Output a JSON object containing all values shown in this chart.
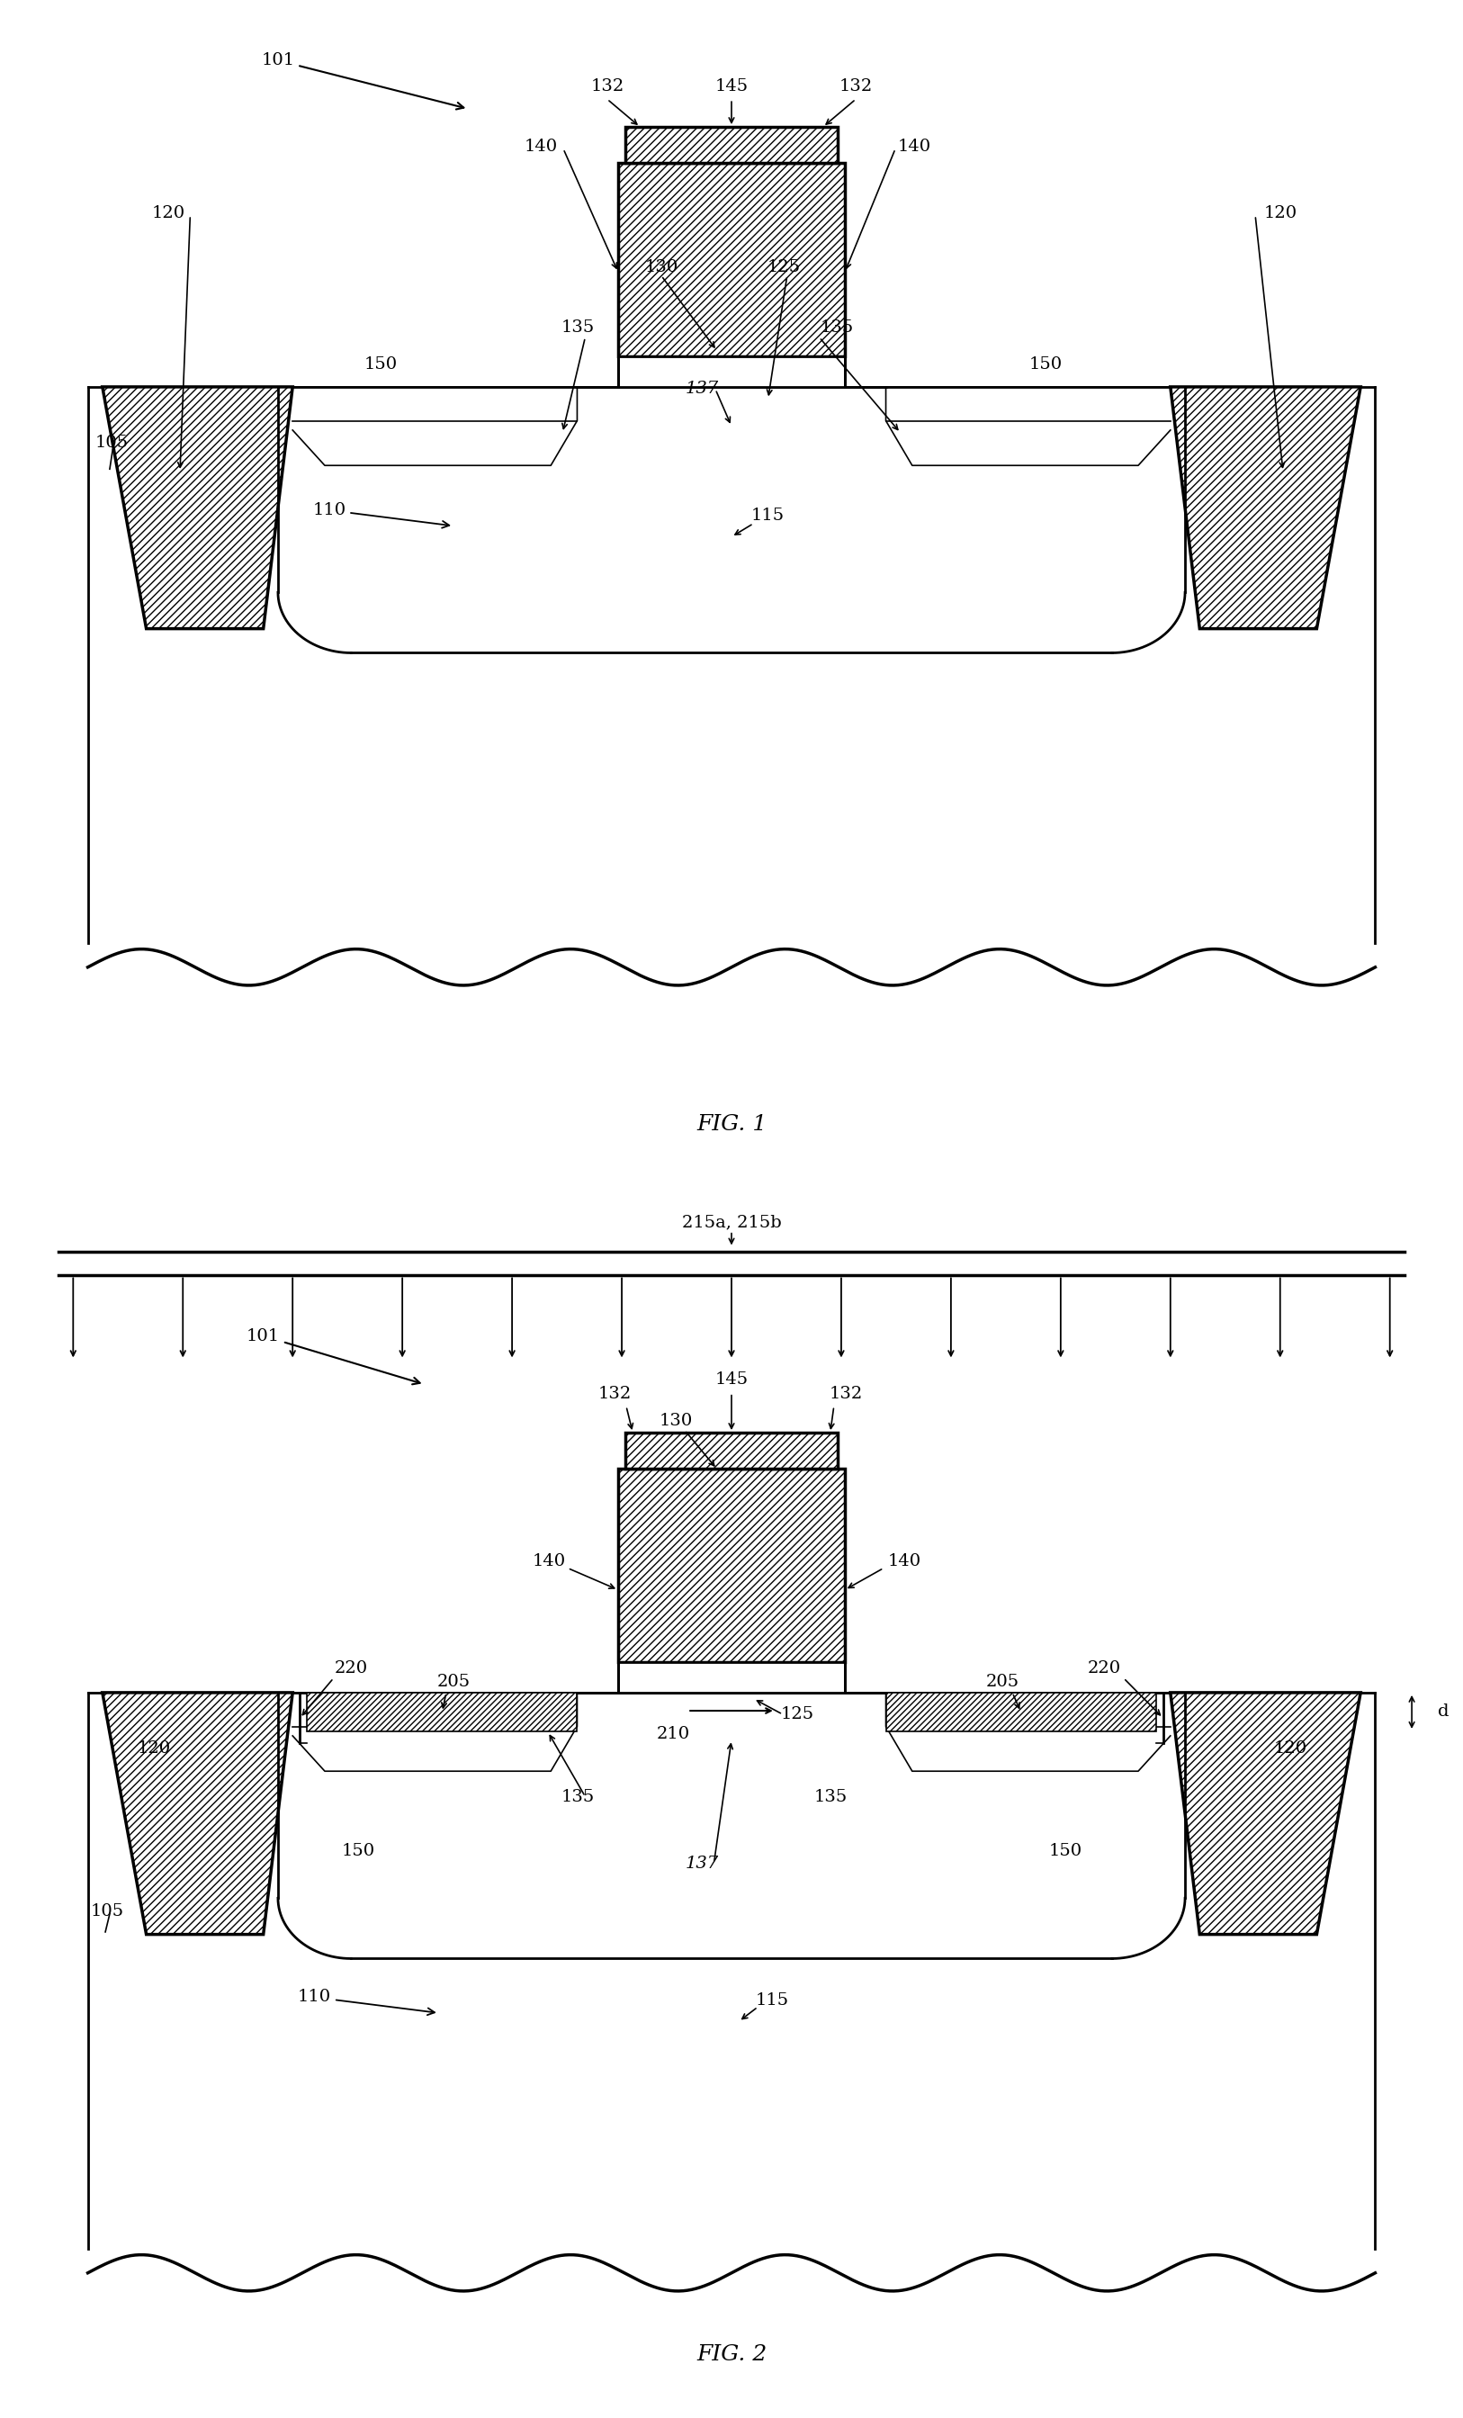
{
  "fig_width": 16.26,
  "fig_height": 26.87,
  "lw": 2.0,
  "lw_thick": 2.5,
  "lw_thin": 1.2,
  "fs_label": 14,
  "fs_title": 18,
  "hatch_pattern": "////",
  "fig1_title": "FIG. 1",
  "fig2_title": "FIG. 2"
}
